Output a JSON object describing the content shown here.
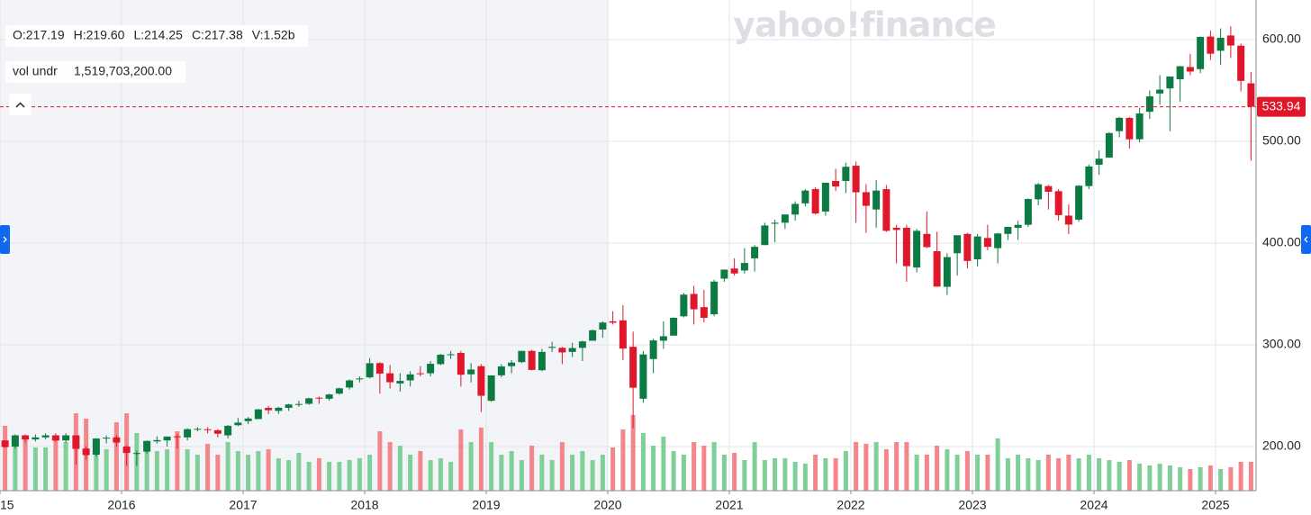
{
  "chart_data": {
    "type": "candlestick",
    "watermark": "yahoo!finance",
    "ohlc_legend": [
      "O:217.19",
      "H:219.60",
      "L:214.25",
      "C:217.38",
      "V:1.52b"
    ],
    "volume_legend": {
      "name": "vol undr",
      "value": "1,519,703,200.00"
    },
    "current_price": 533.94,
    "up_color": "#0b7a43",
    "down_color": "#e0162b",
    "volume_up_color": "#7fcf98",
    "volume_down_color": "#f4858a",
    "grid": true,
    "xlim": [
      "2015-01",
      "2025-05"
    ],
    "xticks": [
      {
        "value": "2015-01",
        "label": "2015"
      },
      {
        "value": "2016-01",
        "label": "2016"
      },
      {
        "value": "2017-01",
        "label": "2017"
      },
      {
        "value": "2018-01",
        "label": "2018"
      },
      {
        "value": "2019-01",
        "label": "2019"
      },
      {
        "value": "2020-01",
        "label": "2020"
      },
      {
        "value": "2021-01",
        "label": "2021"
      },
      {
        "value": "2022-01",
        "label": "2022"
      },
      {
        "value": "2023-01",
        "label": "2023"
      },
      {
        "value": "2024-01",
        "label": "2024"
      },
      {
        "value": "2025-01",
        "label": "2025"
      }
    ],
    "ylim": [
      156.6,
      638.9
    ],
    "yticks": [
      {
        "value": 200,
        "label": "200.00"
      },
      {
        "value": 300,
        "label": "300.00"
      },
      {
        "value": 400,
        "label": "400.00"
      },
      {
        "value": 500,
        "label": "500.00"
      },
      {
        "value": 600,
        "label": "600.00"
      }
    ],
    "volume_lim": [
      0,
      27250000000.0
    ],
    "x": [
      "2015-01",
      "2015-02",
      "2015-03",
      "2015-04",
      "2015-05",
      "2015-06",
      "2015-07",
      "2015-08",
      "2015-09",
      "2015-10",
      "2015-11",
      "2015-12",
      "2016-01",
      "2016-02",
      "2016-03",
      "2016-04",
      "2016-05",
      "2016-06",
      "2016-07",
      "2016-08",
      "2016-09",
      "2016-10",
      "2016-11",
      "2016-12",
      "2017-01",
      "2017-02",
      "2017-03",
      "2017-04",
      "2017-05",
      "2017-06",
      "2017-07",
      "2017-08",
      "2017-09",
      "2017-10",
      "2017-11",
      "2017-12",
      "2018-01",
      "2018-02",
      "2018-03",
      "2018-04",
      "2018-05",
      "2018-06",
      "2018-07",
      "2018-08",
      "2018-09",
      "2018-10",
      "2018-11",
      "2018-12",
      "2019-01",
      "2019-02",
      "2019-03",
      "2019-04",
      "2019-05",
      "2019-06",
      "2019-07",
      "2019-08",
      "2019-09",
      "2019-10",
      "2019-11",
      "2019-12",
      "2020-01",
      "2020-02",
      "2020-03",
      "2020-04",
      "2020-05",
      "2020-06",
      "2020-07",
      "2020-08",
      "2020-09",
      "2020-10",
      "2020-11",
      "2020-12",
      "2021-01",
      "2021-02",
      "2021-03",
      "2021-04",
      "2021-05",
      "2021-06",
      "2021-07",
      "2021-08",
      "2021-09",
      "2021-10",
      "2021-11",
      "2021-12",
      "2022-01",
      "2022-02",
      "2022-03",
      "2022-04",
      "2022-05",
      "2022-06",
      "2022-07",
      "2022-08",
      "2022-09",
      "2022-10",
      "2022-11",
      "2022-12",
      "2023-01",
      "2023-02",
      "2023-03",
      "2023-04",
      "2023-05",
      "2023-06",
      "2023-07",
      "2023-08",
      "2023-09",
      "2023-10",
      "2023-11",
      "2023-12",
      "2024-01",
      "2024-02",
      "2024-03",
      "2024-04",
      "2024-05",
      "2024-06",
      "2024-07",
      "2024-08",
      "2024-09",
      "2024-10",
      "2024-11",
      "2024-12",
      "2025-01",
      "2025-02",
      "2025-03",
      "2025-04"
    ],
    "open": [
      206,
      200,
      211,
      207,
      209,
      211,
      206,
      211,
      198,
      192,
      208,
      209,
      200,
      193,
      195,
      205,
      206,
      210,
      209,
      217,
      217,
      216,
      211,
      221,
      225,
      227,
      238,
      235,
      238,
      241,
      242,
      248,
      247,
      252,
      258,
      266,
      268,
      282,
      272,
      262,
      265,
      272,
      272,
      281,
      290,
      292,
      271,
      279,
      245,
      270,
      279,
      283,
      294,
      275,
      297,
      297,
      293,
      297,
      304,
      315,
      323,
      324,
      298,
      247,
      286,
      304,
      309,
      328,
      350,
      337,
      330,
      365,
      375,
      373,
      385,
      398,
      419,
      420,
      428,
      439,
      453,
      431,
      461,
      461,
      476,
      450,
      433,
      453,
      415,
      415,
      376,
      409,
      392,
      357,
      390,
      409,
      384,
      405,
      395,
      409,
      415,
      418,
      443,
      456,
      451,
      427,
      423,
      456,
      477,
      484,
      510,
      523,
      502,
      529,
      547,
      552,
      561,
      573,
      571,
      603,
      589,
      604,
      594,
      557
    ],
    "high": [
      206,
      212,
      212,
      212,
      213,
      213,
      213,
      211,
      200,
      208,
      211,
      211,
      201,
      196,
      206,
      210,
      210,
      212,
      218,
      219,
      219,
      217,
      221,
      228,
      229,
      237,
      240,
      239,
      242,
      245,
      248,
      249,
      252,
      258,
      266,
      269,
      287,
      283,
      280,
      272,
      274,
      279,
      284,
      291,
      294,
      294,
      282,
      281,
      270,
      281,
      285,
      294,
      295,
      296,
      303,
      298,
      302,
      304,
      315,
      323,
      333,
      339,
      313,
      294,
      306,
      323,
      327,
      351,
      358,
      354,
      364,
      374,
      385,
      395,
      398,
      420,
      423,
      428,
      441,
      453,
      455,
      459,
      473,
      479,
      480,
      458,
      462,
      457,
      418,
      418,
      414,
      431,
      411,
      390,
      407,
      410,
      409,
      418,
      410,
      415,
      422,
      444,
      459,
      457,
      453,
      438,
      457,
      477,
      491,
      509,
      524,
      524,
      533,
      550,
      565,
      563,
      574,
      586,
      603,
      609,
      611,
      613,
      596,
      568
    ],
    "low": [
      199,
      198,
      204,
      205,
      207,
      205,
      204,
      182,
      187,
      190,
      203,
      200,
      181,
      181,
      193,
      203,
      200,
      198,
      206,
      215,
      213,
      209,
      208,
      220,
      222,
      227,
      232,
      232,
      235,
      239,
      241,
      242,
      245,
      251,
      256,
      263,
      267,
      252,
      257,
      254,
      259,
      269,
      269,
      280,
      286,
      259,
      263,
      234,
      244,
      268,
      272,
      282,
      275,
      274,
      293,
      281,
      288,
      284,
      304,
      307,
      320,
      285,
      218,
      243,
      272,
      296,
      311,
      327,
      320,
      322,
      328,
      362,
      368,
      370,
      372,
      398,
      401,
      414,
      422,
      436,
      428,
      427,
      451,
      449,
      420,
      410,
      415,
      411,
      380,
      362,
      371,
      395,
      357,
      349,
      368,
      375,
      377,
      393,
      380,
      403,
      403,
      416,
      437,
      433,
      422,
      409,
      421,
      453,
      467,
      484,
      504,
      493,
      499,
      522,
      536,
      510,
      539,
      565,
      567,
      580,
      575,
      582,
      549,
      481
    ],
    "close": [
      199.5,
      211,
      207,
      209,
      211,
      205.9,
      211,
      197.7,
      191.6,
      207.9,
      208.7,
      203.9,
      193.7,
      193.6,
      205.5,
      206.3,
      209.8,
      209.5,
      217.1,
      217.4,
      216.3,
      212.6,
      220.4,
      223.5,
      227.5,
      236.5,
      235.7,
      238.1,
      241.4,
      241.8,
      247.4,
      247.5,
      251.2,
      257.2,
      265,
      266.9,
      281.9,
      271.7,
      263.2,
      264.5,
      270.9,
      271.3,
      281.3,
      290.3,
      290.7,
      270.6,
      275.7,
      249.9,
      269.9,
      278.7,
      282.5,
      294,
      275.3,
      293,
      298,
      292.5,
      296.8,
      303.3,
      314.3,
      321.9,
      321.7,
      296.3,
      257.8,
      290.5,
      304.3,
      308.4,
      326.5,
      349.3,
      334.9,
      326.5,
      362.1,
      373.9,
      370.1,
      380.4,
      396.3,
      417.3,
      420,
      428.1,
      438.5,
      451.6,
      429.1,
      459.3,
      455.6,
      474.96,
      449.9,
      436.6,
      451.6,
      412,
      412.9,
      377.3,
      411.99,
      396,
      357.2,
      386.2,
      407.7,
      382.4,
      406.5,
      396.3,
      409.4,
      415.9,
      417.9,
      443.3,
      457.8,
      450.4,
      427.5,
      418.2,
      456.4,
      475.3,
      482.9,
      508.1,
      523.1,
      501.98,
      527.4,
      544.2,
      550.8,
      563.7,
      573.8,
      568.6,
      602.6,
      586.1,
      601.8,
      594.2,
      559.4,
      533.94
    ],
    "volume": [
      3600000000.0,
      2700000000.0,
      3000000000.0,
      2400000000.0,
      2400000000.0,
      3000000000.0,
      2700000000.0,
      4300000000.0,
      4000000000.0,
      2700000000.0,
      2300000000.0,
      3800000000.0,
      4300000000.0,
      3200000000.0,
      2500000000.0,
      2200000000.0,
      2300000000.0,
      3300000000.0,
      2300000000.0,
      2000000000.0,
      2600000000.0,
      2000000000.0,
      2700000000.0,
      2200000000.0,
      2000000000.0,
      2200000000.0,
      2300000000.0,
      1800000000.0,
      1700000000.0,
      2100000000.0,
      1600000000.0,
      1800000000.0,
      1600000000.0,
      1600000000.0,
      1700000000.0,
      1800000000.0,
      2000000000.0,
      3300000000.0,
      2700000000.0,
      2500000000.0,
      2000000000.0,
      2200000000.0,
      1700000000.0,
      1800000000.0,
      1600000000.0,
      3400000000.0,
      2700000000.0,
      3500000000.0,
      2700000000.0,
      2000000000.0,
      2200000000.0,
      1700000000.0,
      2500000000.0,
      2000000000.0,
      1700000000.0,
      2700000000.0,
      2000000000.0,
      2200000000.0,
      1700000000.0,
      2000000000.0,
      2400000000.0,
      3400000000.0,
      4200000000.0,
      3200000000.0,
      2500000000.0,
      3000000000.0,
      2200000000.0,
      2000000000.0,
      2700000000.0,
      2500000000.0,
      2700000000.0,
      2000000000.0,
      2100000000.0,
      1700000000.0,
      2700000000.0,
      1700000000.0,
      1800000000.0,
      1800000000.0,
      1600000000.0,
      1500000000.0,
      2000000000.0,
      1800000000.0,
      1800000000.0,
      2200000000.0,
      2700000000.0,
      2600000000.0,
      2700000000.0,
      2300000000.0,
      2700000000.0,
      2700000000.0,
      2000000000.0,
      2000000000.0,
      2500000000.0,
      2300000000.0,
      2000000000.0,
      2200000000.0,
      2000000000.0,
      2000000000.0,
      2900000000.0,
      1800000000.0,
      2000000000.0,
      1800000000.0,
      1700000000.0,
      2000000000.0,
      1800000000.0,
      2000000000.0,
      1800000000.0,
      2000000000.0,
      1800000000.0,
      1700000000.0,
      1600000000.0,
      1700000000.0,
      1500000000.0,
      1400000000.0,
      1500000000.0,
      1400000000.0,
      1300000000.0,
      1200000000.0,
      1300000000.0,
      1400000000.0,
      1200000000.0,
      1300000000.0,
      1600000000.0,
      1600000000.0
    ]
  }
}
